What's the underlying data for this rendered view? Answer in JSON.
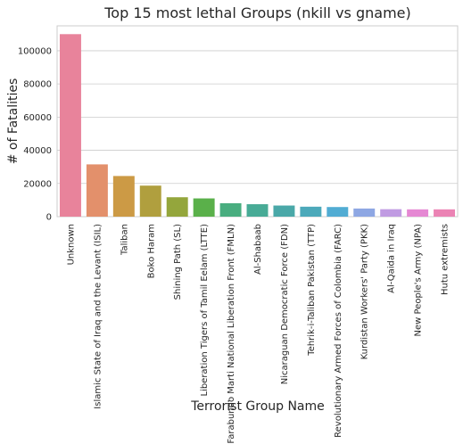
{
  "chart_data": {
    "type": "bar",
    "title": "Top 15 most lethal Groups (nkill vs gname)",
    "xlabel": "Terrorist Group Name",
    "ylabel": "# of Fatalities",
    "ylim": [
      0,
      115000
    ],
    "yticks": [
      0,
      20000,
      40000,
      60000,
      80000,
      100000
    ],
    "grid": "horizontal",
    "categories": [
      "Unknown",
      "Islamic State of Iraq and the Levant (ISIL)",
      "Taliban",
      "Boko Haram",
      "Shining Path (SL)",
      "Liberation Tigers of Tamil Eelam (LTTE)",
      "Farabundo Marti National Liberation Front (FMLN)",
      "Al-Shabaab",
      "Nicaraguan Democratic Force (FDN)",
      "Tehrik-i-Taliban Pakistan (TTP)",
      "Revolutionary Armed Forces of Colombia (FARC)",
      "Kurdistan Workers' Party (PKK)",
      "Al-Qaida in Iraq",
      "New People's Army (NPA)",
      "Hutu extremists"
    ],
    "values": [
      110000,
      31500,
      24500,
      18700,
      11700,
      11000,
      8100,
      7500,
      6700,
      6000,
      5800,
      4900,
      4500,
      4400,
      4400
    ],
    "colors": [
      "#e8839b",
      "#e3906b",
      "#cc9a45",
      "#b09f3e",
      "#94a63c",
      "#5ab04a",
      "#49ad7f",
      "#48ab96",
      "#4aa8a8",
      "#4ca9ba",
      "#51acd3",
      "#8ea7e3",
      "#c09be2",
      "#e588d3",
      "#eb83b4"
    ]
  }
}
